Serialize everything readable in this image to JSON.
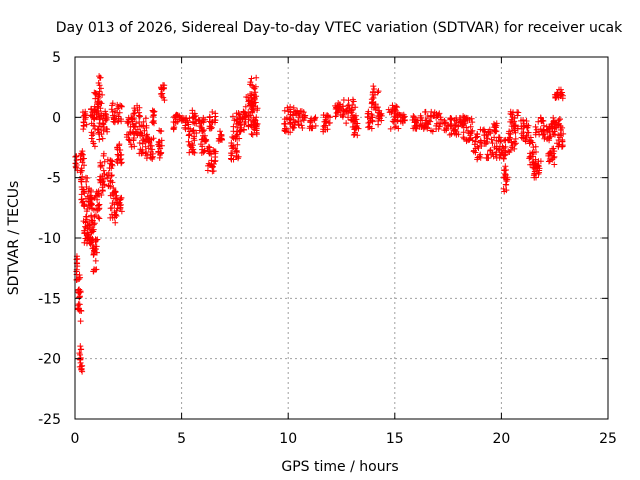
{
  "chart_data": {
    "type": "scatter",
    "title": "Day 013 of 2026, Sidereal Day-to-day VTEC variation (SDTVAR) for receiver ucak",
    "xlabel": "GPS time / hours",
    "ylabel": "SDTVAR / TECUs",
    "xlim": [
      0,
      25
    ],
    "ylim": [
      -25,
      5
    ],
    "xticks": [
      0,
      5,
      10,
      15,
      20,
      25
    ],
    "yticks": [
      5,
      0,
      -5,
      -10,
      -15,
      -20,
      -25
    ],
    "grid": true,
    "marker": "+",
    "color": "#ff0000",
    "segments": [
      {
        "x0": 0.0,
        "x1": 0.12,
        "ymin": -4.5,
        "ymax": -3.2
      },
      {
        "x0": 0.05,
        "x1": 0.15,
        "ymin": -13.5,
        "ymax": -11.5
      },
      {
        "x0": 0.1,
        "x1": 0.3,
        "ymin": -17.0,
        "ymax": -13.0
      },
      {
        "x0": 0.2,
        "x1": 0.35,
        "ymin": -21.2,
        "ymax": -18.5
      },
      {
        "x0": 0.25,
        "x1": 0.45,
        "ymin": -8.0,
        "ymax": -2.5
      },
      {
        "x0": 0.35,
        "x1": 0.55,
        "ymin": -1.0,
        "ymax": 0.5
      },
      {
        "x0": 0.4,
        "x1": 0.6,
        "ymin": -10.5,
        "ymax": -5.0
      },
      {
        "x0": 0.55,
        "x1": 0.8,
        "ymin": -10.5,
        "ymax": -8.0
      },
      {
        "x0": 0.6,
        "x1": 0.8,
        "ymin": -7.5,
        "ymax": -5.5
      },
      {
        "x0": 0.7,
        "x1": 0.95,
        "ymin": -2.5,
        "ymax": 1.0
      },
      {
        "x0": 0.75,
        "x1": 0.95,
        "ymin": -11.5,
        "ymax": -6.5
      },
      {
        "x0": 0.85,
        "x1": 1.05,
        "ymin": -13.0,
        "ymax": -10.0
      },
      {
        "x0": 0.9,
        "x1": 1.1,
        "ymin": 0.0,
        "ymax": 2.5
      },
      {
        "x0": 0.95,
        "x1": 1.15,
        "ymin": -8.5,
        "ymax": -6.0
      },
      {
        "x0": 1.05,
        "x1": 1.3,
        "ymin": -2.0,
        "ymax": 4.2
      },
      {
        "x0": 1.15,
        "x1": 1.4,
        "ymin": -6.5,
        "ymax": -3.0
      },
      {
        "x0": 1.3,
        "x1": 1.55,
        "ymin": -1.5,
        "ymax": 0.5
      },
      {
        "x0": 1.5,
        "x1": 1.8,
        "ymin": -6.0,
        "ymax": -3.5
      },
      {
        "x0": 1.65,
        "x1": 1.95,
        "ymin": -9.0,
        "ymax": -6.0
      },
      {
        "x0": 1.7,
        "x1": 2.2,
        "ymin": -0.5,
        "ymax": 1.2
      },
      {
        "x0": 1.9,
        "x1": 2.2,
        "ymin": -8.0,
        "ymax": -6.5
      },
      {
        "x0": 1.95,
        "x1": 2.2,
        "ymin": -4.0,
        "ymax": -2.0
      },
      {
        "x0": 2.4,
        "x1": 2.8,
        "ymin": -2.5,
        "ymax": 0.0
      },
      {
        "x0": 2.7,
        "x1": 3.1,
        "ymin": -1.5,
        "ymax": 1.0
      },
      {
        "x0": 3.0,
        "x1": 3.4,
        "ymin": -3.0,
        "ymax": 0.0
      },
      {
        "x0": 3.3,
        "x1": 3.7,
        "ymin": -3.5,
        "ymax": -1.5
      },
      {
        "x0": 3.6,
        "x1": 3.8,
        "ymin": -0.5,
        "ymax": 0.6
      },
      {
        "x0": 3.9,
        "x1": 4.1,
        "ymin": -3.5,
        "ymax": -1.0
      },
      {
        "x0": 4.0,
        "x1": 4.2,
        "ymin": 1.3,
        "ymax": 2.8
      },
      {
        "x0": 4.6,
        "x1": 4.9,
        "ymin": -1.0,
        "ymax": 0.4
      },
      {
        "x0": 5.0,
        "x1": 5.4,
        "ymin": -1.0,
        "ymax": 0.0
      },
      {
        "x0": 5.3,
        "x1": 5.7,
        "ymin": -3.0,
        "ymax": -1.0
      },
      {
        "x0": 5.5,
        "x1": 5.7,
        "ymin": -0.6,
        "ymax": 0.6
      },
      {
        "x0": 5.8,
        "x1": 6.1,
        "ymin": -1.2,
        "ymax": 0.2
      },
      {
        "x0": 5.9,
        "x1": 6.3,
        "ymin": -3.0,
        "ymax": -1.5
      },
      {
        "x0": 6.2,
        "x1": 6.6,
        "ymin": -4.5,
        "ymax": -2.5
      },
      {
        "x0": 6.3,
        "x1": 6.6,
        "ymin": -1.0,
        "ymax": 0.5
      },
      {
        "x0": 6.7,
        "x1": 6.9,
        "ymin": -2.0,
        "ymax": -1.0
      },
      {
        "x0": 7.3,
        "x1": 7.7,
        "ymin": -3.5,
        "ymax": -1.5
      },
      {
        "x0": 7.4,
        "x1": 7.8,
        "ymin": -2.0,
        "ymax": 0.5
      },
      {
        "x0": 7.7,
        "x1": 8.0,
        "ymin": -1.5,
        "ymax": 0.5
      },
      {
        "x0": 8.0,
        "x1": 8.4,
        "ymin": -1.0,
        "ymax": 2.0
      },
      {
        "x0": 8.2,
        "x1": 8.6,
        "ymin": 0.5,
        "ymax": 3.3
      },
      {
        "x0": 8.2,
        "x1": 8.6,
        "ymin": -1.5,
        "ymax": 0.5
      },
      {
        "x0": 9.8,
        "x1": 10.3,
        "ymin": -1.5,
        "ymax": 1.0
      },
      {
        "x0": 10.2,
        "x1": 10.8,
        "ymin": -1.0,
        "ymax": 0.8
      },
      {
        "x0": 11.0,
        "x1": 11.3,
        "ymin": -1.0,
        "ymax": 0.0
      },
      {
        "x0": 11.6,
        "x1": 12.0,
        "ymin": -1.2,
        "ymax": 0.2
      },
      {
        "x0": 12.2,
        "x1": 12.6,
        "ymin": 0.0,
        "ymax": 1.2
      },
      {
        "x0": 12.5,
        "x1": 13.2,
        "ymin": -0.5,
        "ymax": 1.5
      },
      {
        "x0": 13.0,
        "x1": 13.3,
        "ymin": -1.5,
        "ymax": 0.0
      },
      {
        "x0": 13.7,
        "x1": 14.0,
        "ymin": -1.0,
        "ymax": 0.5
      },
      {
        "x0": 13.9,
        "x1": 14.3,
        "ymin": 0.5,
        "ymax": 2.6
      },
      {
        "x0": 14.2,
        "x1": 14.4,
        "ymin": -0.8,
        "ymax": 0.5
      },
      {
        "x0": 14.7,
        "x1": 15.2,
        "ymin": -1.0,
        "ymax": 1.0
      },
      {
        "x0": 15.2,
        "x1": 15.5,
        "ymin": -0.5,
        "ymax": 0.3
      },
      {
        "x0": 15.8,
        "x1": 16.4,
        "ymin": -1.0,
        "ymax": 0.2
      },
      {
        "x0": 16.4,
        "x1": 17.2,
        "ymin": -1.2,
        "ymax": 0.5
      },
      {
        "x0": 17.2,
        "x1": 18.0,
        "ymin": -1.5,
        "ymax": 0.0
      },
      {
        "x0": 18.0,
        "x1": 18.3,
        "ymin": -0.8,
        "ymax": 0.2
      },
      {
        "x0": 18.2,
        "x1": 18.7,
        "ymin": -2.0,
        "ymax": 0.0
      },
      {
        "x0": 18.7,
        "x1": 19.3,
        "ymin": -3.5,
        "ymax": -1.0
      },
      {
        "x0": 19.3,
        "x1": 20.0,
        "ymin": -3.5,
        "ymax": -1.0
      },
      {
        "x0": 19.6,
        "x1": 19.8,
        "ymin": -1.2,
        "ymax": -0.5
      },
      {
        "x0": 20.0,
        "x1": 20.2,
        "ymin": -3.5,
        "ymax": -1.5
      },
      {
        "x0": 20.1,
        "x1": 20.3,
        "ymin": -6.8,
        "ymax": -4.0
      },
      {
        "x0": 20.3,
        "x1": 20.7,
        "ymin": -3.0,
        "ymax": -1.0
      },
      {
        "x0": 20.4,
        "x1": 20.8,
        "ymin": -1.0,
        "ymax": 0.5
      },
      {
        "x0": 20.9,
        "x1": 21.3,
        "ymin": -2.0,
        "ymax": 0.0
      },
      {
        "x0": 21.3,
        "x1": 21.7,
        "ymin": -4.5,
        "ymax": -1.5
      },
      {
        "x0": 21.5,
        "x1": 21.9,
        "ymin": -5.0,
        "ymax": -3.5
      },
      {
        "x0": 21.6,
        "x1": 22.0,
        "ymin": -1.5,
        "ymax": 0.0
      },
      {
        "x0": 22.0,
        "x1": 22.4,
        "ymin": -2.0,
        "ymax": -0.5
      },
      {
        "x0": 22.2,
        "x1": 22.5,
        "ymin": -4.0,
        "ymax": -2.5
      },
      {
        "x0": 22.4,
        "x1": 22.8,
        "ymin": -1.5,
        "ymax": 0.0
      },
      {
        "x0": 22.6,
        "x1": 22.9,
        "ymin": -2.5,
        "ymax": -0.5
      },
      {
        "x0": 22.5,
        "x1": 22.9,
        "ymin": 1.5,
        "ymax": 2.3
      }
    ]
  }
}
